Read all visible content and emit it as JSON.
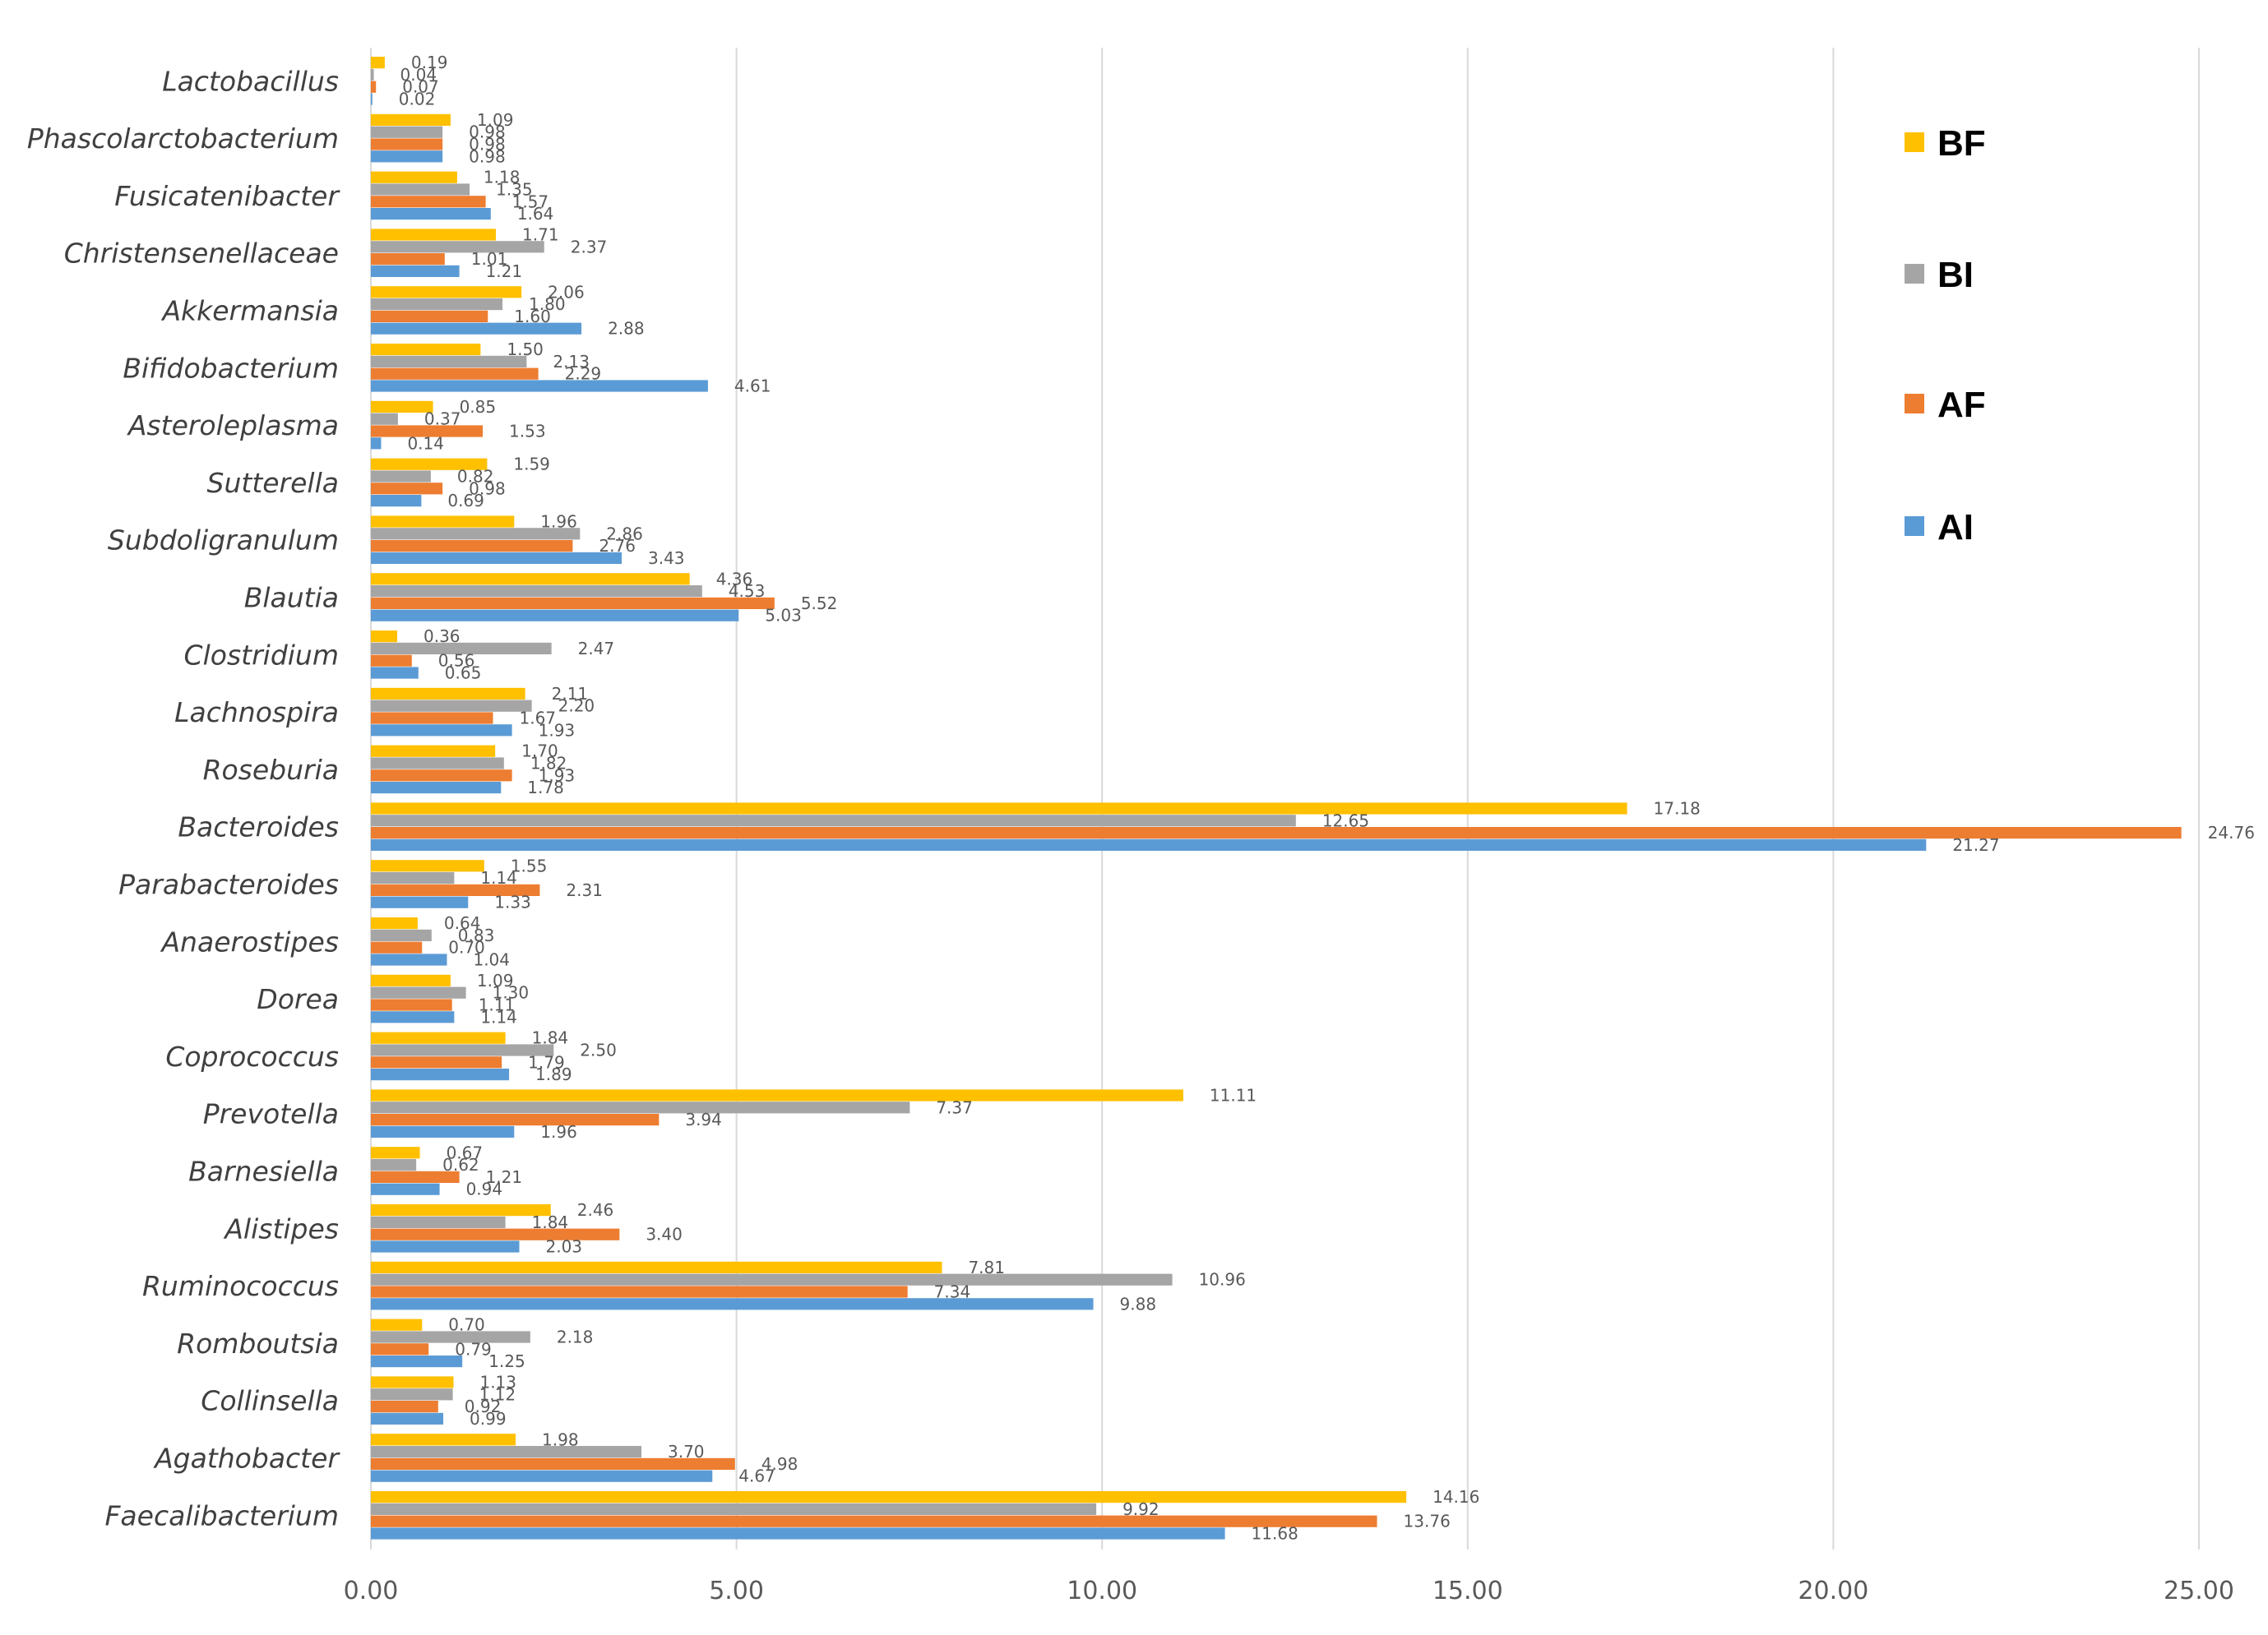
{
  "chart_data": {
    "type": "bar",
    "orientation": "horizontal",
    "title": "",
    "xlabel": "",
    "ylabel": "",
    "xlim": [
      0,
      25
    ],
    "ticks": [
      "0.00",
      "5.00",
      "10.00",
      "15.00",
      "20.00",
      "25.00"
    ],
    "tick_values": [
      0,
      5,
      10,
      15,
      20,
      25
    ],
    "grid": "vertical",
    "legend_position": "right",
    "categories": [
      "Lactobacillus",
      "Phascolarctobacterium",
      "Fusicatenibacter",
      "Christensenellaceae",
      "Akkermansia",
      "Bifidobacterium",
      "Asteroleplasma",
      "Sutterella",
      "Subdoligranulum",
      "Blautia",
      "Clostridium",
      "Lachnospira",
      "Roseburia",
      "Bacteroides",
      "Parabacteroides",
      "Anaerostipes",
      "Dorea",
      "Coprococcus",
      "Prevotella",
      "Barnesiella",
      "Alistipes",
      "Ruminococcus",
      "Romboutsia",
      "Collinsella",
      "Agathobacter",
      "Faecalibacterium"
    ],
    "series": [
      {
        "name": "BF",
        "color": "#ffc000",
        "values": [
          0.19,
          1.09,
          1.18,
          1.71,
          2.06,
          1.5,
          0.85,
          1.59,
          1.96,
          4.36,
          0.36,
          2.11,
          1.7,
          17.18,
          1.55,
          0.64,
          1.09,
          1.84,
          11.11,
          0.67,
          2.46,
          7.81,
          0.7,
          1.13,
          1.98,
          14.16
        ],
        "labels": [
          "0.19",
          "1.09",
          "1.18",
          "1.71",
          "2.06",
          "1.50",
          "0.85",
          "1.59",
          "1.96",
          "4.36",
          "0.36",
          "2.11",
          "1.70",
          "17.18",
          "1.55",
          "0.64",
          "1.09",
          "1.84",
          "11.11",
          "0.67",
          "2.46",
          "7.81",
          "0.70",
          "1.13",
          "1.98",
          "14.16"
        ]
      },
      {
        "name": "BI",
        "color": "#a5a5a5",
        "values": [
          0.04,
          0.98,
          1.35,
          2.37,
          1.8,
          2.13,
          0.37,
          0.82,
          2.86,
          4.53,
          2.47,
          2.2,
          1.82,
          12.65,
          1.14,
          0.83,
          1.3,
          2.5,
          7.37,
          0.62,
          1.84,
          10.96,
          2.18,
          1.12,
          3.7,
          9.92
        ],
        "labels": [
          "0.04",
          "0.98",
          "1.35",
          "2.37",
          "1.80",
          "2.13",
          "0.37",
          "0.82",
          "2.86",
          "4.53",
          "2.47",
          "2.20",
          "1.82",
          "12.65",
          "1.14",
          "0.83",
          "1.30",
          "2.50",
          "7.37",
          "0.62",
          "1.84",
          "10.96",
          "2.18",
          "1.12",
          "3.70",
          "9.92"
        ]
      },
      {
        "name": "AF",
        "color": "#ed7d31",
        "values": [
          0.07,
          0.98,
          1.57,
          1.01,
          1.6,
          2.29,
          1.53,
          0.98,
          2.76,
          5.52,
          0.56,
          1.67,
          1.93,
          24.76,
          2.31,
          0.7,
          1.11,
          1.79,
          3.94,
          1.21,
          3.4,
          7.34,
          0.79,
          0.92,
          4.98,
          13.76
        ],
        "labels": [
          "0.07",
          "0.98",
          "1.57",
          "1.01",
          "1.60",
          "2.29",
          "1.53",
          "0.98",
          "2.76",
          "5.52",
          "0.56",
          "1.67",
          "1.93",
          "24.76",
          "2.31",
          "0.70",
          "1.11",
          "1.79",
          "3.94",
          "1.21",
          "3.40",
          "7.34",
          "0.79",
          "0.92",
          "4.98",
          "13.76"
        ]
      },
      {
        "name": "AI",
        "color": "#5b9bd5",
        "values": [
          0.02,
          0.98,
          1.64,
          1.21,
          2.88,
          4.61,
          0.14,
          0.69,
          3.43,
          5.03,
          0.65,
          1.93,
          1.78,
          21.27,
          1.33,
          1.04,
          1.14,
          1.89,
          1.96,
          0.94,
          2.03,
          9.88,
          1.25,
          0.99,
          4.67,
          11.68
        ],
        "labels": [
          "0.02",
          "0.98",
          "1.64",
          "1.21",
          "2.88",
          "4.61",
          "0.14",
          "0.69",
          "3.43",
          "5.03",
          "0.65",
          "1.93",
          "1.78",
          "21.27",
          "1.33",
          "1.04",
          "1.14",
          "1.89",
          "1.96",
          "0.94",
          "2.03",
          "9.88",
          "1.25",
          "0.99",
          "4.67",
          "11.68"
        ]
      }
    ]
  }
}
